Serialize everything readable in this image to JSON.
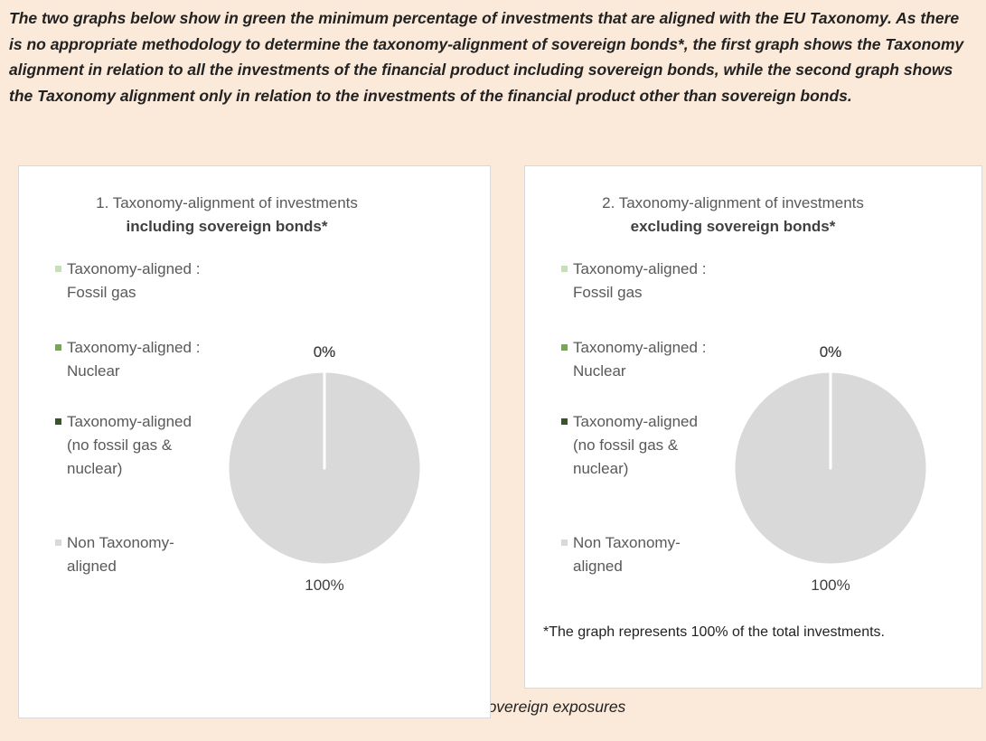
{
  "intro": "The two graphs below show in green the minimum percentage of investments that are aligned with the EU Taxonomy. As there is no appropriate methodology to determine the taxonomy-alignment of sovereign bonds*, the first graph shows the Taxonomy alignment in relation to all the investments of the financial product including sovereign bonds, while the second graph shows the Taxonomy alignment only in relation to the investments of the financial product other than sovereign bonds.",
  "footnote": "*For the purpose of these graphs, ‘sovereign bonds’ consist of all sovereign exposures",
  "chart_data": [
    {
      "type": "pie",
      "title": "1. Taxonomy-alignment of investments",
      "subtitle": "including sovereign bonds*",
      "categories": [
        "Taxonomy-aligned : Fossil gas",
        "Taxonomy-aligned : Nuclear",
        "Taxonomy-aligned (no fossil gas & nuclear)",
        "Non Taxonomy-aligned"
      ],
      "values": [
        0,
        0,
        0,
        100
      ],
      "value_labels": [
        "0%",
        "0%",
        "0%",
        "100%"
      ],
      "colors": [
        "#c5e0b4",
        "#70ad47",
        "#375623",
        "#d9d9d9"
      ],
      "legend": "left"
    },
    {
      "type": "pie",
      "title": "2. Taxonomy-alignment of investments",
      "subtitle": "excluding sovereign bonds*",
      "categories": [
        "Taxonomy-aligned : Fossil gas",
        "Taxonomy-aligned : Nuclear",
        "Taxonomy-aligned (no fossil gas & nuclear)",
        "Non Taxonomy-aligned"
      ],
      "values": [
        0,
        0,
        0,
        100
      ],
      "value_labels": [
        "0%",
        "0%",
        "0%",
        "100%"
      ],
      "colors": [
        "#c5e0b4",
        "#70ad47",
        "#375623",
        "#d9d9d9"
      ],
      "legend": "left",
      "note": "*The graph represents 100% of the total investments."
    }
  ]
}
